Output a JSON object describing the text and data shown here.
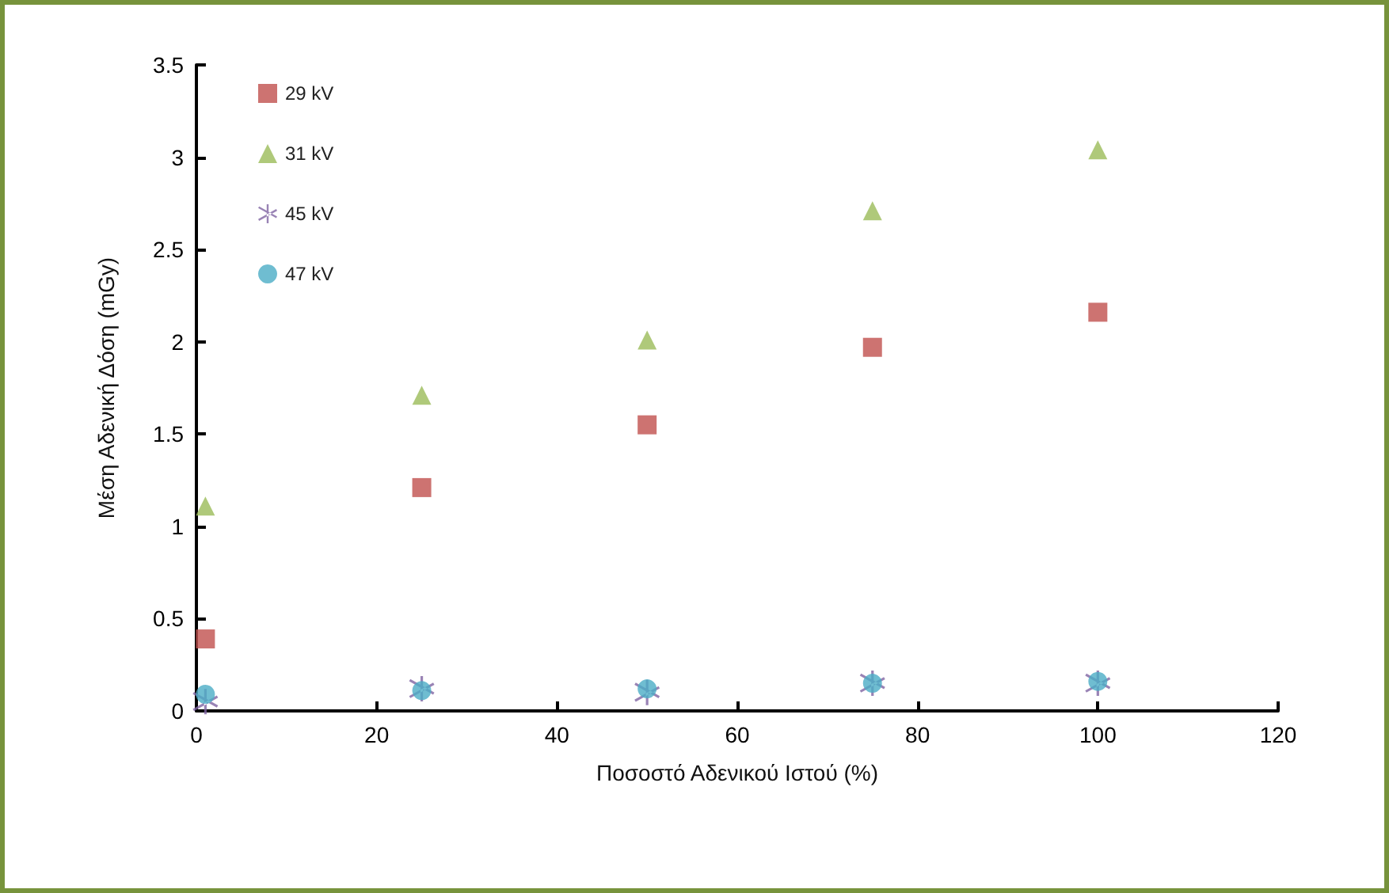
{
  "chart_data": {
    "type": "scatter",
    "xlabel": "Ποσοστό Αδενικού Ιστού (%)",
    "ylabel": "Μέση Αδενική Δόση (mGy)",
    "x": [
      1,
      25,
      50,
      75,
      100
    ],
    "series": [
      {
        "name": "29 kV",
        "color": "#c0504d",
        "marker": "square",
        "values": [
          0.39,
          1.21,
          1.55,
          1.97,
          2.16
        ]
      },
      {
        "name": "31 kV",
        "color": "#9bbb59",
        "marker": "triangle",
        "values": [
          1.11,
          1.71,
          2.01,
          2.71,
          3.04
        ]
      },
      {
        "name": "45 kV",
        "color": "#8064a2",
        "marker": "cross",
        "values": [
          0.05,
          0.12,
          0.1,
          0.15,
          0.15
        ]
      },
      {
        "name": "47 kV",
        "color": "#4bacc6",
        "marker": "circle",
        "values": [
          0.09,
          0.11,
          0.12,
          0.15,
          0.16
        ]
      }
    ],
    "xlim": [
      0,
      120
    ],
    "xticks": [
      0,
      20,
      40,
      60,
      80,
      100,
      120
    ],
    "ylim": [
      0,
      3.5
    ],
    "yticks": [
      0,
      0.5,
      1,
      1.5,
      2,
      2.5,
      3,
      3.5
    ],
    "grid": false,
    "legend": "top left"
  }
}
